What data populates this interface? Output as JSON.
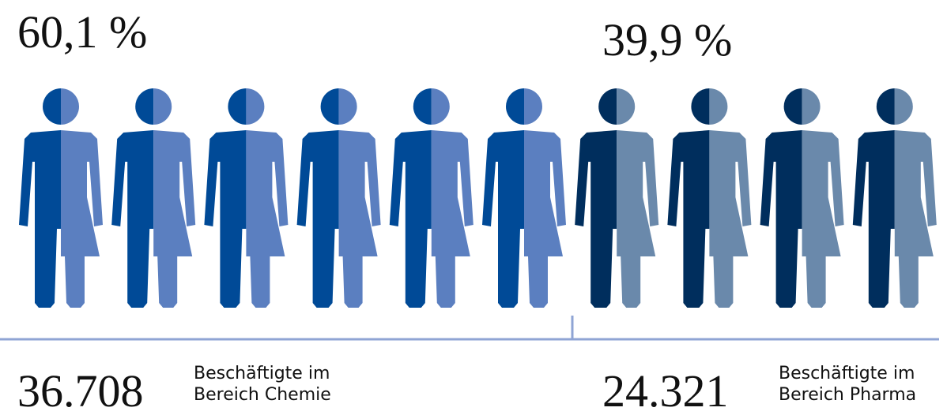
{
  "left": {
    "percent": "60,1 %",
    "count": "36.708",
    "label": [
      "Beschäftigte im",
      "Bereich Chemie"
    ]
  },
  "right": {
    "percent": "39,9 %",
    "count": "24.321",
    "label": [
      "Beschäftigte im",
      "Bereich Pharma"
    ]
  }
}
